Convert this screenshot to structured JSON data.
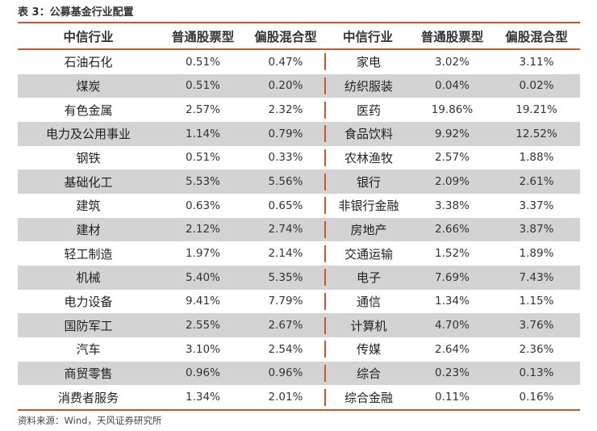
{
  "title": "表 3：公募基金行业配置",
  "headers": [
    "中信行业",
    "普通股票型",
    "偏股混合型",
    "中信行业",
    "普通股票型",
    "偏股混合型"
  ],
  "rows": [
    [
      "石油石化",
      "0.51%",
      "0.47%",
      "家电",
      "3.02%",
      "3.11%"
    ],
    [
      "煤炭",
      "0.51%",
      "0.20%",
      "纺织服装",
      "0.04%",
      "0.02%"
    ],
    [
      "有色金属",
      "2.57%",
      "2.32%",
      "医药",
      "19.86%",
      "19.21%"
    ],
    [
      "电力及公用事业",
      "1.14%",
      "0.79%",
      "食品饮料",
      "9.92%",
      "12.52%"
    ],
    [
      "钢铁",
      "0.51%",
      "0.33%",
      "农林渔牧",
      "2.57%",
      "1.88%"
    ],
    [
      "基础化工",
      "5.53%",
      "5.56%",
      "银行",
      "2.09%",
      "2.61%"
    ],
    [
      "建筑",
      "0.63%",
      "0.65%",
      "非银行金融",
      "3.38%",
      "3.37%"
    ],
    [
      "建材",
      "2.12%",
      "2.74%",
      "房地产",
      "2.66%",
      "3.87%"
    ],
    [
      "轻工制造",
      "1.97%",
      "2.14%",
      "交通运输",
      "1.52%",
      "1.89%"
    ],
    [
      "机械",
      "5.40%",
      "5.35%",
      "电子",
      "7.69%",
      "7.43%"
    ],
    [
      "电力设备",
      "9.41%",
      "7.79%",
      "通信",
      "1.34%",
      "1.15%"
    ],
    [
      "国防军工",
      "2.55%",
      "2.67%",
      "计算机",
      "4.70%",
      "3.76%"
    ],
    [
      "汽车",
      "3.10%",
      "2.54%",
      "传媒",
      "2.64%",
      "2.36%"
    ],
    [
      "商贸零售",
      "0.96%",
      "0.96%",
      "综合",
      "0.23%",
      "0.13%"
    ],
    [
      "消费者服务",
      "1.34%",
      "2.01%",
      "综合金融",
      "0.11%",
      "0.16%"
    ]
  ],
  "source": "资料来源：Wind，天风证券研究所"
}
